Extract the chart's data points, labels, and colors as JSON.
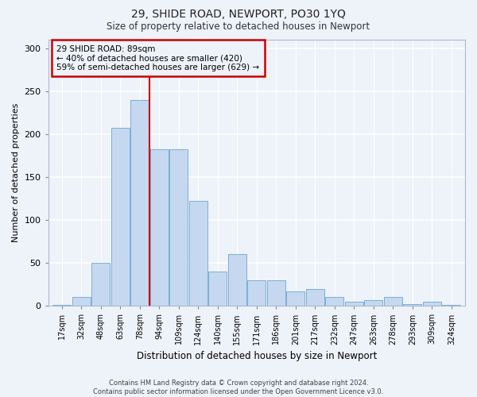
{
  "title": "29, SHIDE ROAD, NEWPORT, PO30 1YQ",
  "subtitle": "Size of property relative to detached houses in Newport",
  "xlabel": "Distribution of detached houses by size in Newport",
  "ylabel": "Number of detached properties",
  "bar_color": "#c5d8f0",
  "bar_edge_color": "#7bafd4",
  "background_color": "#eef2f9",
  "annotation_line1": "29 SHIDE ROAD: 89sqm",
  "annotation_line2": "← 40% of detached houses are smaller (420)",
  "annotation_line3": "59% of semi-detached houses are larger (629) →",
  "vline_color": "#cc0000",
  "vline_x_index": 5,
  "categories": [
    "17sqm",
    "32sqm",
    "48sqm",
    "63sqm",
    "78sqm",
    "94sqm",
    "109sqm",
    "124sqm",
    "140sqm",
    "155sqm",
    "171sqm",
    "186sqm",
    "201sqm",
    "217sqm",
    "232sqm",
    "247sqm",
    "263sqm",
    "278sqm",
    "293sqm",
    "309sqm",
    "324sqm"
  ],
  "values": [
    1,
    10,
    50,
    207,
    240,
    182,
    182,
    122,
    40,
    60,
    30,
    30,
    17,
    20,
    10,
    5,
    7,
    10,
    2,
    5,
    1
  ],
  "ylim": [
    0,
    310
  ],
  "yticks": [
    0,
    50,
    100,
    150,
    200,
    250,
    300
  ],
  "title_fontsize": 10,
  "subtitle_fontsize": 8.5,
  "footer_line1": "Contains HM Land Registry data © Crown copyright and database right 2024.",
  "footer_line2": "Contains public sector information licensed under the Open Government Licence v3.0."
}
